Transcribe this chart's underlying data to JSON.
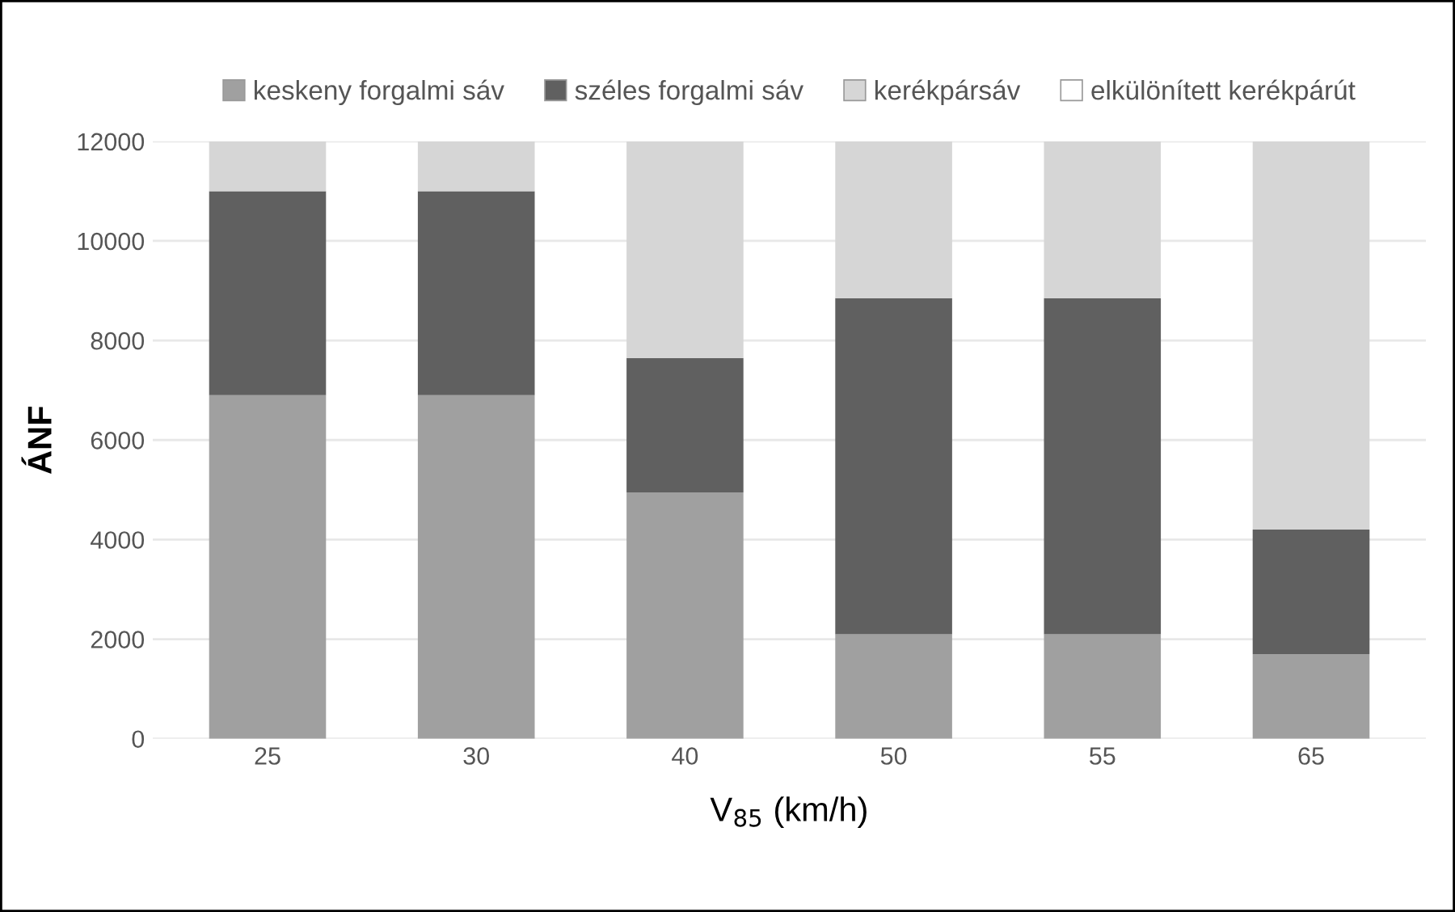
{
  "chart_data": {
    "type": "bar",
    "stacked": true,
    "categories": [
      "25",
      "30",
      "40",
      "50",
      "55",
      "65"
    ],
    "series": [
      {
        "name": "keskeny forgalmi sáv",
        "color": "#a0a0a0",
        "values": [
          6900,
          6900,
          4950,
          2100,
          2100,
          1700
        ]
      },
      {
        "name": "széles forgalmi sáv",
        "color": "#606060",
        "values": [
          4100,
          4100,
          2700,
          6750,
          6750,
          2500
        ]
      },
      {
        "name": "kerékpársáv",
        "color": "#d6d6d6",
        "values": [
          1000,
          1000,
          4350,
          3150,
          3150,
          7800
        ]
      },
      {
        "name": "elkülönített kerékpárút",
        "color": "#ffffff",
        "values": [
          0,
          0,
          0,
          0,
          0,
          0
        ]
      }
    ],
    "xlabel": "V$_{85}$ (km/h)",
    "ylabel": "ÁNF",
    "ylim": [
      0,
      12000
    ],
    "yticks": [
      0,
      2000,
      4000,
      6000,
      8000,
      10000,
      12000
    ],
    "grid": "y",
    "legend": "top"
  }
}
